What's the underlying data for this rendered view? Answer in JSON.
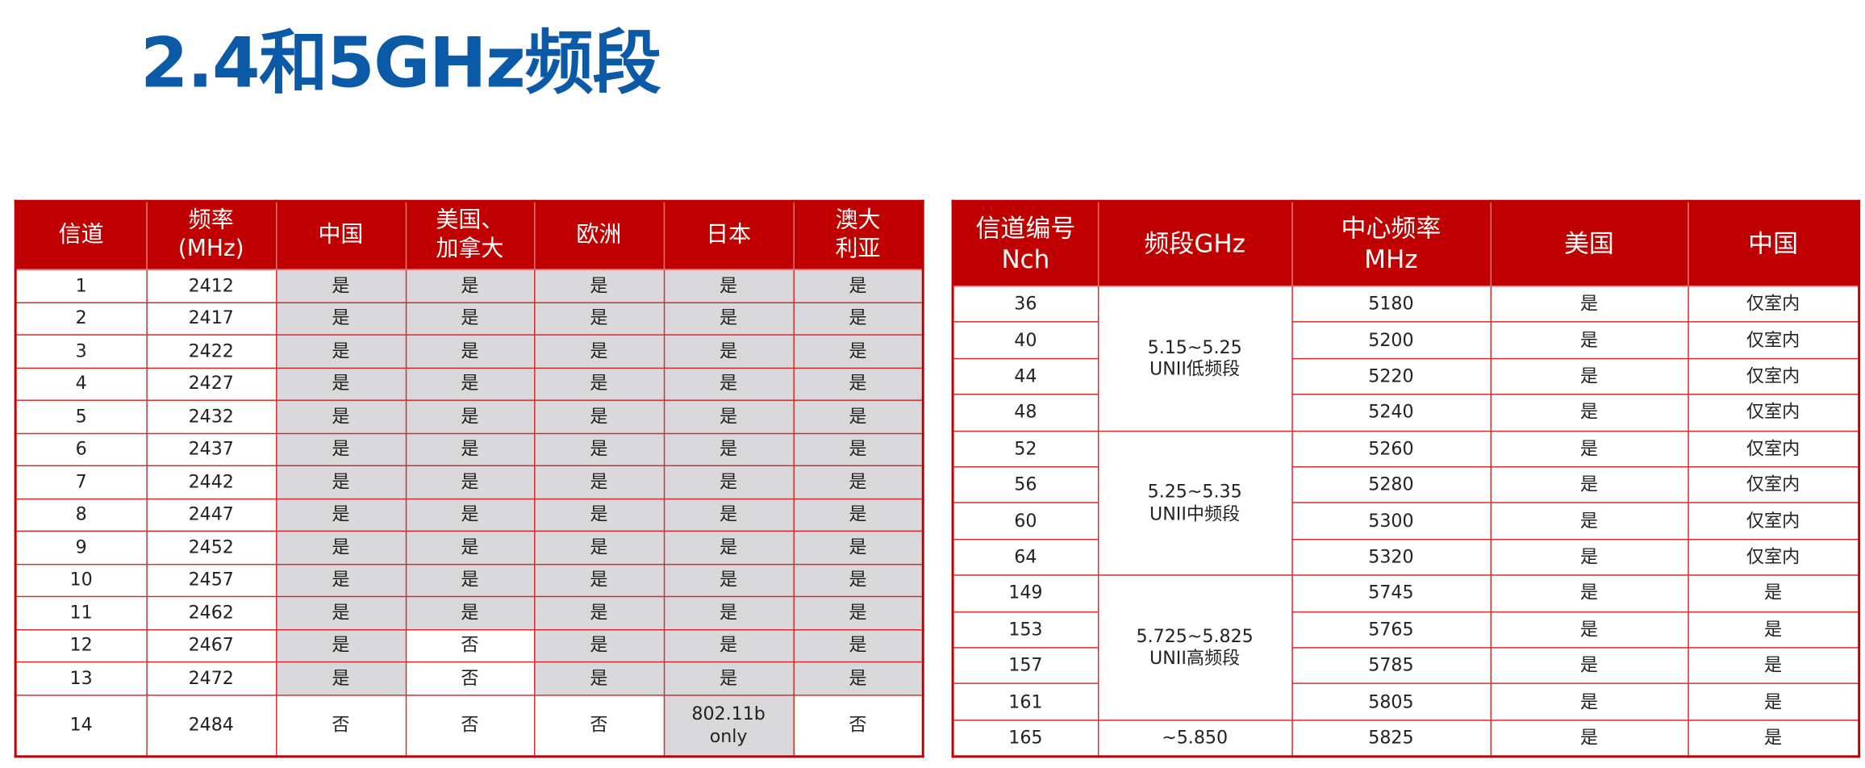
{
  "title": "2.4和5GHz频段",
  "table1": {
    "headers": [
      "信道",
      "频率\n(MHz)",
      "中国",
      "美国、\n加拿大",
      "欧洲",
      "日本",
      "澳大\n利亚"
    ],
    "rows": [
      [
        "1",
        "2412",
        "是",
        "是",
        "是",
        "是",
        "是"
      ],
      [
        "2",
        "2417",
        "是",
        "是",
        "是",
        "是",
        "是"
      ],
      [
        "3",
        "2422",
        "是",
        "是",
        "是",
        "是",
        "是"
      ],
      [
        "4",
        "2427",
        "是",
        "是",
        "是",
        "是",
        "是"
      ],
      [
        "5",
        "2432",
        "是",
        "是",
        "是",
        "是",
        "是"
      ],
      [
        "6",
        "2437",
        "是",
        "是",
        "是",
        "是",
        "是"
      ],
      [
        "7",
        "2442",
        "是",
        "是",
        "是",
        "是",
        "是"
      ],
      [
        "8",
        "2447",
        "是",
        "是",
        "是",
        "是",
        "是"
      ],
      [
        "9",
        "2452",
        "是",
        "是",
        "是",
        "是",
        "是"
      ],
      [
        "10",
        "2457",
        "是",
        "是",
        "是",
        "是",
        "是"
      ],
      [
        "11",
        "2462",
        "是",
        "是",
        "是",
        "是",
        "是"
      ],
      [
        "12",
        "2467",
        "是",
        "否",
        "是",
        "是",
        "是"
      ],
      [
        "13",
        "2472",
        "是",
        "否",
        "是",
        "是",
        "是"
      ],
      [
        "14",
        "2484",
        "否",
        "否",
        "否",
        "802.11b\nonly",
        "否"
      ]
    ],
    "shade": [
      [
        0,
        0,
        1,
        1,
        1,
        1,
        1
      ],
      [
        0,
        0,
        1,
        1,
        1,
        1,
        1
      ],
      [
        0,
        0,
        1,
        1,
        1,
        1,
        1
      ],
      [
        0,
        0,
        1,
        1,
        1,
        1,
        1
      ],
      [
        0,
        0,
        1,
        1,
        1,
        1,
        1
      ],
      [
        0,
        0,
        1,
        1,
        1,
        1,
        1
      ],
      [
        0,
        0,
        1,
        1,
        1,
        1,
        1
      ],
      [
        0,
        0,
        1,
        1,
        1,
        1,
        1
      ],
      [
        0,
        0,
        1,
        1,
        1,
        1,
        1
      ],
      [
        0,
        0,
        1,
        1,
        1,
        1,
        1
      ],
      [
        0,
        0,
        1,
        1,
        1,
        1,
        1
      ],
      [
        0,
        0,
        1,
        0,
        1,
        1,
        1
      ],
      [
        0,
        0,
        1,
        0,
        1,
        1,
        1
      ],
      [
        0,
        0,
        0,
        0,
        0,
        1,
        0
      ]
    ]
  },
  "table2": {
    "headers": [
      "信道编号\nNch",
      "频段GHz",
      "中心频率\nMHz",
      "美国",
      "中国"
    ],
    "rows": [
      {
        "nch": "36",
        "band": "5.15~5.25\nUNII低频段",
        "freq": "5180",
        "us": "是",
        "cn": "仅室内"
      },
      {
        "nch": "40",
        "freq": "5200",
        "us": "是",
        "cn": "仅室内"
      },
      {
        "nch": "44",
        "freq": "5220",
        "us": "是",
        "cn": "仅室内"
      },
      {
        "nch": "48",
        "freq": "5240",
        "us": "是",
        "cn": "仅室内"
      },
      {
        "nch": "52",
        "band": "5.25~5.35\nUNII中频段",
        "freq": "5260",
        "us": "是",
        "cn": "仅室内"
      },
      {
        "nch": "56",
        "freq": "5280",
        "us": "是",
        "cn": "仅室内"
      },
      {
        "nch": "60",
        "freq": "5300",
        "us": "是",
        "cn": "仅室内"
      },
      {
        "nch": "64",
        "freq": "5320",
        "us": "是",
        "cn": "仅室内"
      },
      {
        "nch": "149",
        "band": "5.725~5.825\nUNII高频段",
        "freq": "5745",
        "us": "是",
        "cn": "是"
      },
      {
        "nch": "153",
        "freq": "5765",
        "us": "是",
        "cn": "是"
      },
      {
        "nch": "157",
        "freq": "5785",
        "us": "是",
        "cn": "是"
      },
      {
        "nch": "161",
        "freq": "5805",
        "us": "是",
        "cn": "是"
      },
      {
        "nch": "165",
        "band": "~5.850",
        "freq": "5825",
        "us": "是",
        "cn": "是"
      }
    ]
  }
}
